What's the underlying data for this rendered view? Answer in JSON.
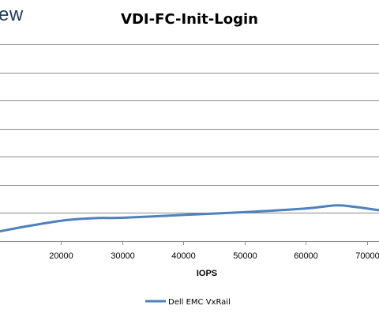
{
  "brand": {
    "text": "ew"
  },
  "chart_data": {
    "type": "line",
    "title": "VDI-FC-Init-Login",
    "xlabel": "IOPS",
    "ylabel": "",
    "xlim": [
      10000,
      72000
    ],
    "ylim": [
      0,
      7
    ],
    "x_ticks": [
      20000,
      30000,
      40000,
      50000,
      60000,
      70000
    ],
    "x_tick_labels": [
      "20000",
      "30000",
      "40000",
      "50000",
      "60000",
      "70000"
    ],
    "y_gridlines": [
      1,
      2,
      3,
      4,
      5,
      6,
      7
    ],
    "grid": true,
    "legend_position": "bottom",
    "series": [
      {
        "name": "Dell EMC VxRail",
        "color": "#4f81bd",
        "x": [
          10000,
          15000,
          21000,
          26000,
          30000,
          40000,
          50000,
          60000,
          65000,
          68000,
          72000
        ],
        "y": [
          0.35,
          0.55,
          0.75,
          0.82,
          0.83,
          0.93,
          1.03,
          1.16,
          1.27,
          1.22,
          1.1
        ]
      }
    ]
  }
}
